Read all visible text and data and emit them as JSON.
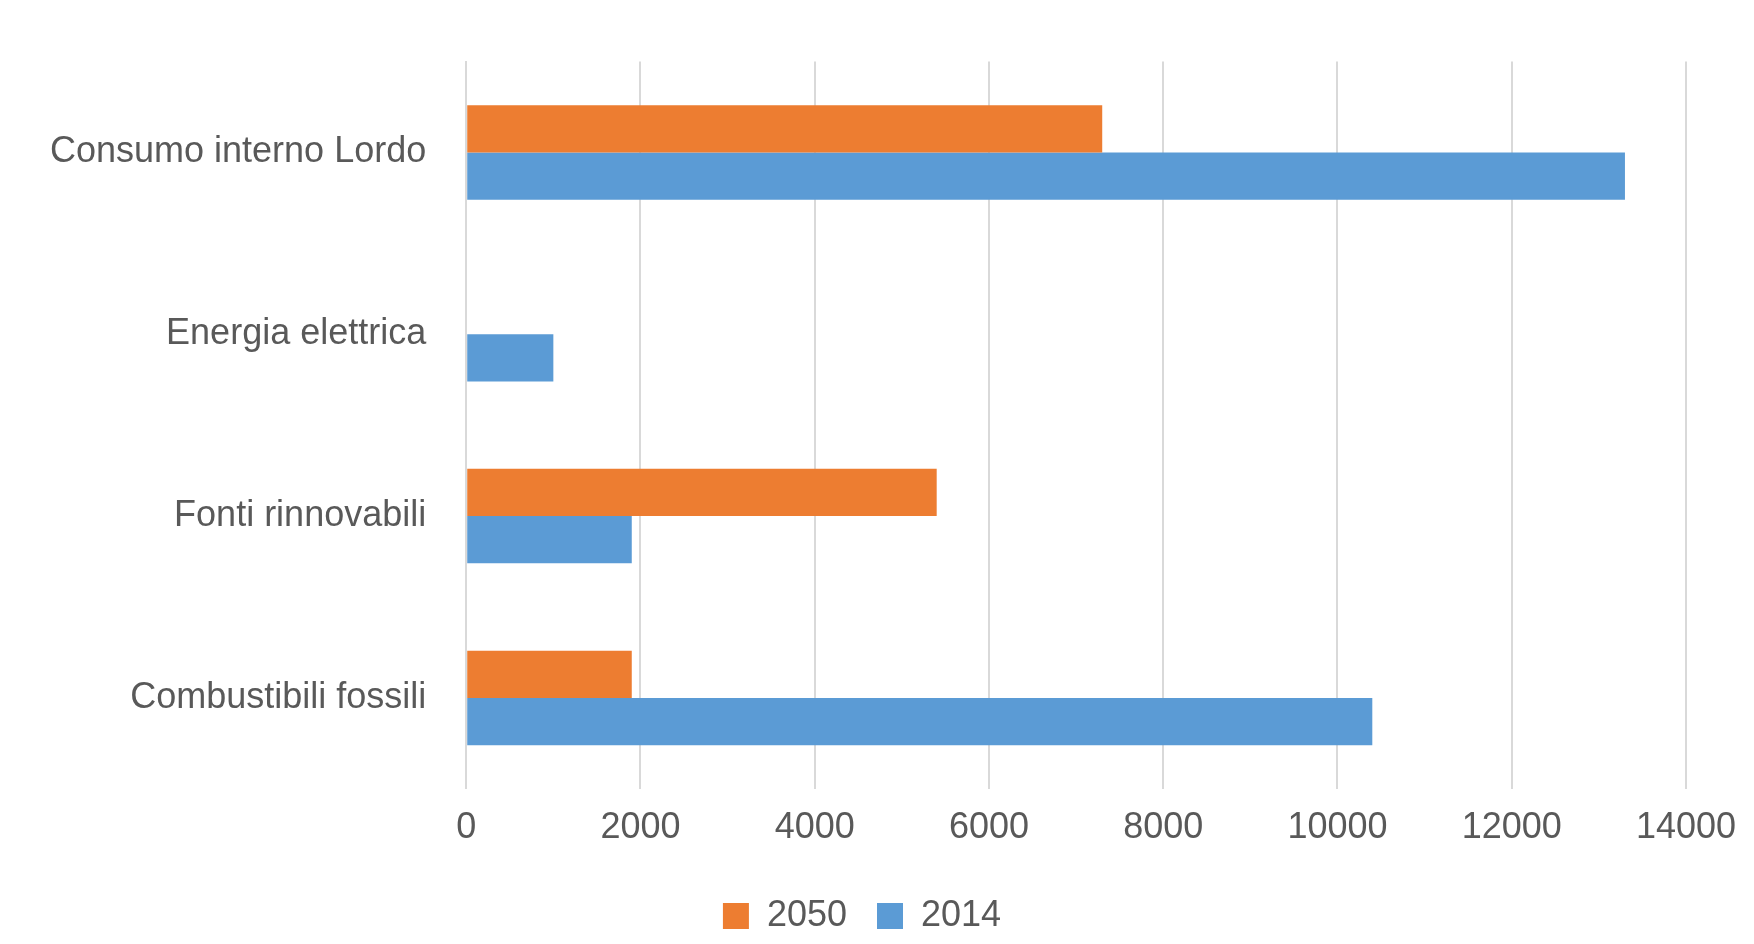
{
  "chart_data": {
    "type": "bar",
    "orientation": "horizontal",
    "categories": [
      "Consumo interno Lordo",
      "Energia elettrica",
      "Fonti rinnovabili",
      "Combustibili fossili"
    ],
    "series": [
      {
        "name": "2050",
        "color": "#ed7d31",
        "values": [
          7300,
          null,
          5400,
          1900
        ]
      },
      {
        "name": "2014",
        "color": "#5b9bd5",
        "values": [
          13300,
          1000,
          1900,
          10400
        ]
      }
    ],
    "xlim": [
      0,
      14000
    ],
    "xticks": [
      0,
      2000,
      4000,
      6000,
      8000,
      10000,
      12000,
      14000
    ],
    "grid": "x",
    "legend": "bottom"
  }
}
